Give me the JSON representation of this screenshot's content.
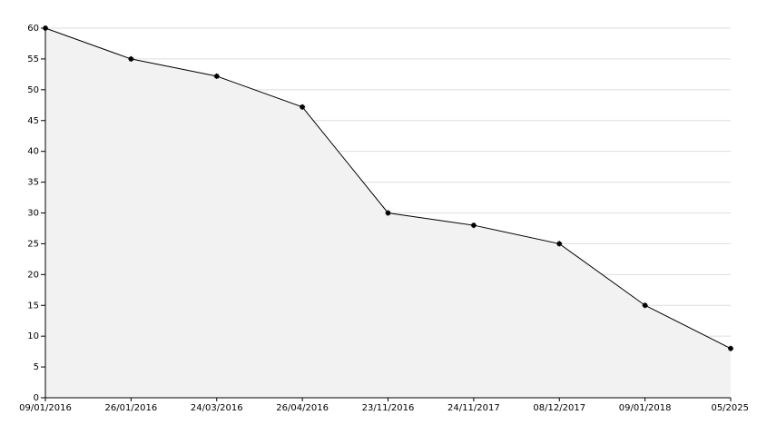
{
  "chart_data": {
    "type": "area",
    "categories": [
      "09/01/2016",
      "26/01/2016",
      "24/03/2016",
      "26/04/2016",
      "23/11/2016",
      "24/11/2017",
      "08/12/2017",
      "09/01/2018",
      "05/2025"
    ],
    "values": [
      60,
      55,
      52.2,
      47.2,
      30,
      28,
      25,
      15,
      8
    ],
    "color": "#000000",
    "fill": "#f2f2f2",
    "ylim": [
      0,
      60
    ],
    "yticks": [
      0,
      5,
      10,
      15,
      20,
      25,
      30,
      35,
      40,
      45,
      50,
      55,
      60
    ],
    "grid": true
  }
}
